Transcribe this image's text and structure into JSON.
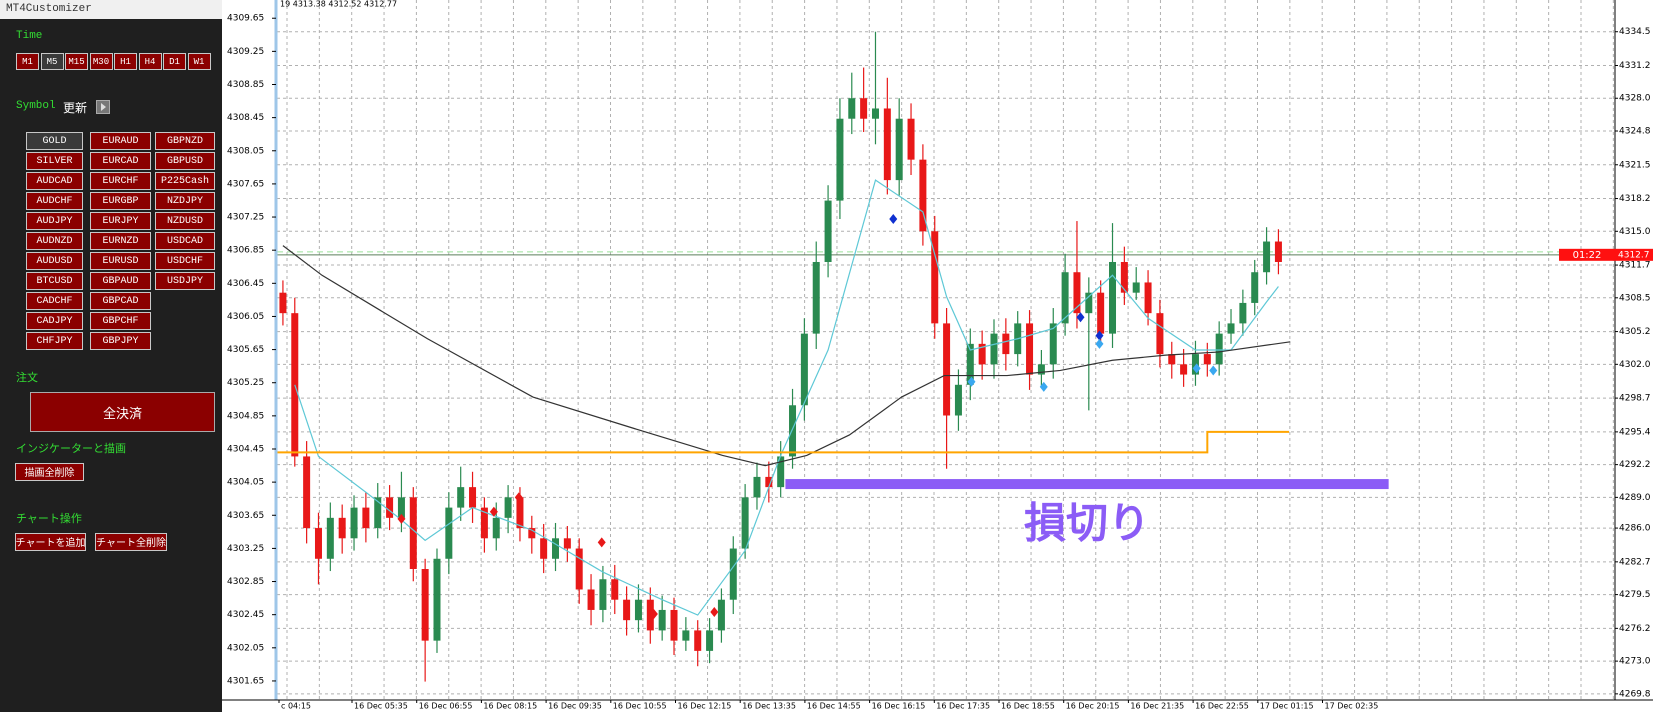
{
  "window_title": "MT4Customizer",
  "panel": {
    "time_label": "Time",
    "timeframes": [
      "M1",
      "M5",
      "M15",
      "M30",
      "H1",
      "H4",
      "D1",
      "W1"
    ],
    "active_timeframe": "M5",
    "symbol_label": "Symbol",
    "refresh": "更新",
    "symbols": [
      [
        "GOLD",
        "SILVER",
        "AUDCAD",
        "AUDCHF",
        "AUDJPY",
        "AUDNZD",
        "AUDUSD",
        "BTCUSD",
        "CADCHF",
        "CADJPY",
        "CHFJPY"
      ],
      [
        "EURAUD",
        "EURCAD",
        "EURCHF",
        "EURGBP",
        "EURJPY",
        "EURNZD",
        "EURUSD",
        "GBPAUD",
        "GBPCAD",
        "GBPCHF",
        "GBPJPY"
      ],
      [
        "GBPNZD",
        "GBPUSD",
        "P225Cash",
        "NZDJPY",
        "NZDUSD",
        "USDCAD",
        "USDCHF",
        "USDJPY"
      ]
    ],
    "active_symbol": "GOLD",
    "order_label": "注文",
    "close_all": "全決済",
    "indicator_label": "インジケーターと描画",
    "delete_drawings": "描画全削除",
    "chart_label": "チャート操作",
    "add_chart": "チャートを追加",
    "delete_charts": "チャート全削除"
  },
  "chart_data": {
    "type": "candlestick",
    "info": "19 4313.38 4312.52 4312.77",
    "time_labels": [
      "c 04:15",
      "16 Dec 05:35",
      "16 Dec 06:55",
      "16 Dec 08:15",
      "16 Dec 09:35",
      "16 Dec 10:55",
      "16 Dec 12:15",
      "16 Dec 13:35",
      "16 Dec 14:55",
      "16 Dec 16:15",
      "16 Dec 17:35",
      "16 Dec 18:55",
      "16 Dec 20:15",
      "16 Dec 21:35",
      "16 Dec 22:55",
      "17 Dec 01:15",
      "17 Dec 02:35"
    ],
    "open": [
      4309,
      4307,
      4293,
      4286,
      4283,
      4287,
      4285,
      4288,
      4286,
      4289,
      4287,
      4289,
      4282,
      4275,
      4283,
      4288,
      4290,
      4288,
      4285,
      4287,
      4289,
      4286,
      4285,
      4283,
      4285,
      4284,
      4280,
      4278,
      4281,
      4279,
      4277,
      4279,
      4276,
      4278,
      4275,
      4276,
      4274,
      4276,
      4279,
      4284,
      4289,
      4291,
      4290,
      4293,
      4298,
      4305,
      4312,
      4318,
      4326,
      4328,
      4326,
      4327,
      4320,
      4326,
      4322,
      4315,
      4306,
      4297,
      4300,
      4304,
      4302,
      4305,
      4303,
      4306,
      4301,
      4302,
      4306,
      4311,
      4307,
      4309,
      4305,
      4312,
      4309,
      4310,
      4307,
      4303,
      4302,
      4301,
      4303,
      4302,
      4305,
      4306,
      4308,
      4311,
      4314
    ],
    "high": [
      4310.2,
      4308.5,
      4294.5,
      4287.5,
      4288.5,
      4288.3,
      4289.2,
      4289.5,
      4290.4,
      4290.2,
      4291.5,
      4290,
      4283,
      4284,
      4289.5,
      4292,
      4291.5,
      4289,
      4288.5,
      4290.2,
      4290,
      4287.2,
      4286.4,
      4286.5,
      4286.2,
      4285,
      4281.5,
      4282.3,
      4282.4,
      4280.3,
      4280.5,
      4280.2,
      4279.4,
      4279.2,
      4277.3,
      4277,
      4277.2,
      4280.1,
      4285.2,
      4290.3,
      4292.4,
      4292.5,
      4294.5,
      4299.6,
      4306.5,
      4314,
      4319.5,
      4328,
      4330.5,
      4331,
      4334.5,
      4330,
      4328,
      4327.5,
      4323.5,
      4316.5,
      4307.5,
      4301.5,
      4305.5,
      4305.3,
      4306.4,
      4306.5,
      4307.2,
      4307.3,
      4303.4,
      4307.5,
      4312.8,
      4316,
      4310.5,
      4310.2,
      4315.8,
      4313.5,
      4311.5,
      4311.2,
      4308.3,
      4304.2,
      4303.5,
      4304.3,
      4304.1,
      4306.2,
      4307.4,
      4309.3,
      4312.2,
      4315.4,
      4315.2
    ],
    "low": [
      4305.8,
      4292,
      4284.5,
      4280.5,
      4281.8,
      4283.5,
      4283.8,
      4284.6,
      4285,
      4285.8,
      4285.6,
      4280.8,
      4271,
      4273.8,
      4281.5,
      4286.7,
      4286.5,
      4283.6,
      4283.8,
      4285.5,
      4284.7,
      4283.5,
      4281.6,
      4281.8,
      4282.7,
      4278.6,
      4276.5,
      4276.8,
      4277.6,
      4275.5,
      4275.8,
      4274.7,
      4275,
      4273.6,
      4274,
      4272.5,
      4272.8,
      4274.8,
      4277.6,
      4283,
      4287.8,
      4288.5,
      4289,
      4291.8,
      4296.5,
      4303.5,
      4310.5,
      4316.2,
      4324.5,
      4324.7,
      4323.5,
      4318.6,
      4318.5,
      4320.5,
      4313.6,
      4304.5,
      4291.8,
      4295.5,
      4298.5,
      4300.5,
      4300.6,
      4301.4,
      4301.8,
      4299.5,
      4299.8,
      4300.6,
      4304.8,
      4305.5,
      4297.5,
      4303.8,
      4303.6,
      4307.8,
      4308.3,
      4305.8,
      4301.7,
      4300.6,
      4299.8,
      4299.9,
      4300.8,
      4300.9,
      4304,
      4304.8,
      4306.8,
      4309.8,
      4310.8
    ],
    "close": [
      4307,
      4293,
      4286,
      4283,
      4287,
      4285,
      4288,
      4286,
      4289,
      4287,
      4289,
      4282,
      4275,
      4283,
      4288,
      4290,
      4288,
      4285,
      4287,
      4289,
      4286,
      4285,
      4283,
      4285,
      4284,
      4280,
      4278,
      4281,
      4279,
      4277,
      4279,
      4276,
      4278,
      4275,
      4276,
      4274,
      4276,
      4279,
      4284,
      4289,
      4291,
      4290,
      4293,
      4298,
      4305,
      4312,
      4318,
      4326,
      4328,
      4326,
      4327,
      4320,
      4326,
      4322,
      4315,
      4306,
      4297,
      4300,
      4304,
      4302,
      4305,
      4303,
      4306,
      4301,
      4302,
      4306,
      4311,
      4307,
      4309,
      4305,
      4312,
      4309,
      4310,
      4307,
      4303,
      4302,
      4301,
      4303,
      4302,
      4305,
      4306,
      4308,
      4311,
      4314,
      4312
    ],
    "colors": {
      "up": "#2a8a50",
      "down": "#e81818"
    },
    "xlim": [
      -0.5,
      112.4
    ],
    "ylim": [
      4269.2,
      4337.6
    ],
    "yticks": [
      4334.5,
      4331.2,
      {
        "value": 4328.0,
        "label": "4328.0"
      },
      4324.8,
      4321.5,
      4318.2,
      {
        "value": 4315.0,
        "label": "4315.0"
      },
      4311.7,
      4308.5,
      4305.2,
      {
        "value": 4302.0,
        "label": "4302.0"
      },
      4298.7,
      4295.4,
      4292.2,
      {
        "value": 4289.0,
        "label": "4289.0"
      },
      {
        "value": 4286.0,
        "label": "4286.0"
      },
      4282.7,
      4279.5,
      4276.2,
      {
        "value": 4273.0,
        "label": "4273.0"
      },
      4269.8
    ],
    "y2lim": [
      4301.42,
      4309.87
    ],
    "y2ticks": [
      4309.65,
      4309.25,
      4308.85,
      4308.45,
      4308.05,
      4307.65,
      4307.25,
      4306.85,
      4306.45,
      4306.05,
      4305.65,
      4305.25,
      4304.85,
      4304.45,
      4304.05,
      4303.65,
      4303.25,
      4302.85,
      4302.45,
      4302.05,
      4301.65
    ],
    "grid": true,
    "lines": [
      {
        "color": "#5ec8d6",
        "x": [
          1,
          3,
          7,
          10,
          12,
          16,
          21,
          27,
          32,
          35,
          39,
          42,
          46,
          48,
          50,
          54,
          56,
          58,
          62,
          65,
          70,
          73,
          77,
          80,
          83,
          84
        ],
        "values": [
          4300,
          4293,
          4289.5,
          4286.8,
          4284.8,
          4288,
          4285.8,
          4281.7,
          4279,
          4277.5,
          4283.8,
          4293.1,
          4303.4,
          4311.7,
          4320,
          4316.9,
          4308.6,
          4303.4,
          4304.5,
          4305.5,
          4310.7,
          4306.5,
          4303.4,
          4303.4,
          4308.1,
          4309.6
        ]
      },
      {
        "color": "#333333",
        "x": [
          0,
          3.3,
          12.2,
          21.1,
          30,
          37.1,
          40.7,
          44.2,
          47.8,
          52.2,
          55.8,
          61.1,
          65.6,
          70,
          74.5,
          78.9,
          85
        ],
        "values": [
          4313.6,
          4310.7,
          4304.5,
          4298.8,
          4295.6,
          4293.1,
          4292.1,
          4293.1,
          4295.1,
          4298.8,
          4300.9,
          4300.9,
          4301.4,
          4302.4,
          4302.9,
          4303.2,
          4304.2
        ]
      },
      {
        "color": "#ffa500",
        "x": [
          -0.5,
          78,
          78,
          84.9
        ],
        "values": [
          4293.4,
          4293.4,
          4295.4,
          4295.4
        ]
      }
    ],
    "signals": [
      {
        "color": "#e81818",
        "x": [
          10.0,
          17.8,
          19.9,
          26.9,
          31.3,
          36.4
        ],
        "values": [
          4286.9,
          4287.6,
          4289.0,
          4284.6,
          4277.6,
          4277.8
        ]
      },
      {
        "color": "#1030d0",
        "x": [
          51.5,
          67.3,
          68.9
        ],
        "values": [
          4316.2,
          4306.6,
          4304.8
        ]
      },
      {
        "color": "#3aa8f0",
        "x": [
          58.1,
          64.2,
          68.9,
          77.1,
          78.5
        ],
        "values": [
          4300.3,
          4299.8,
          4304.0,
          4301.6,
          4301.4
        ]
      }
    ],
    "current_price": 4312.7,
    "timer": "01:22",
    "annotation": {
      "text": "損切り",
      "color": "#8b5cf6",
      "x": [
        42.4,
        93.3
      ],
      "value": 4290.3
    }
  }
}
